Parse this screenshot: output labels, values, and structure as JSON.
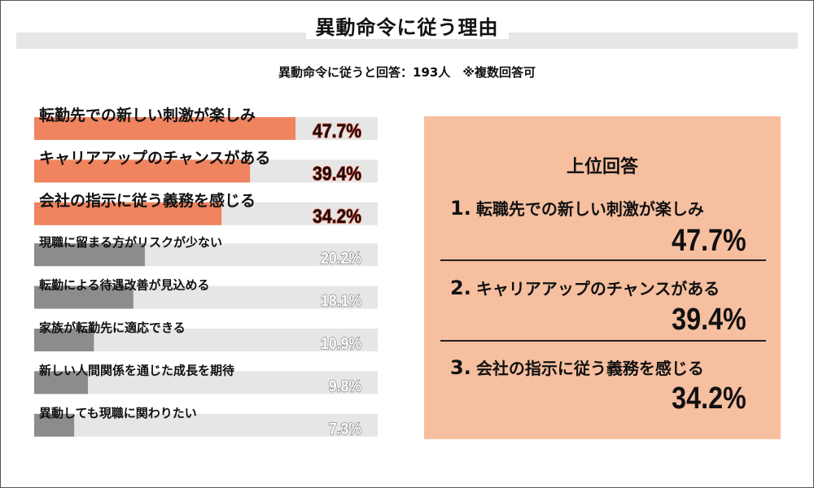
{
  "title": "異動命令に従う理由",
  "subtitle": "異動命令に従うと回答：193人　※複数回答可",
  "colors": {
    "highlight_bar": "#f0845f",
    "normal_bar": "#8c8c8c",
    "track": "#e6e6e6",
    "panel": "#f6bfa0",
    "highlight_value_text": "#111111",
    "highlight_value_outline": "#e8462e",
    "normal_value_text": "#ffffff",
    "normal_value_outline": "#8c8c8c"
  },
  "chart_data": {
    "type": "bar",
    "orientation": "horizontal",
    "unit": "%",
    "xlim": [
      0,
      100
    ],
    "categories": [
      "転勤先での新しい刺激が楽しみ",
      "キャリアアップのチャンスがある",
      "会社の指示に従う義務を感じる",
      "現職に留まる方がリスクが少ない",
      "転勤による待遇改善が見込める",
      "家族が転勤先に適応できる",
      "新しい人間関係を通じた成長を期待",
      "異動しても現職に関わりたい"
    ],
    "values": [
      47.7,
      39.4,
      34.2,
      20.2,
      18.1,
      10.9,
      9.8,
      7.3
    ],
    "value_labels": [
      "47.7%",
      "39.4%",
      "34.2%",
      "20.2%",
      "18.1%",
      "10.9%",
      "9.8%",
      "7.3%"
    ],
    "highlighted_count": 3,
    "grid": false,
    "legend": "none"
  },
  "top_panel": {
    "heading": "上位回答",
    "items": [
      {
        "rank": "1.",
        "label": "転職先での新しい刺激が楽しみ",
        "value": "47.7%"
      },
      {
        "rank": "2.",
        "label": "キャリアアップのチャンスがある",
        "value": "39.4%"
      },
      {
        "rank": "3.",
        "label": "会社の指示に従う義務を感じる",
        "value": "34.2%"
      }
    ]
  }
}
